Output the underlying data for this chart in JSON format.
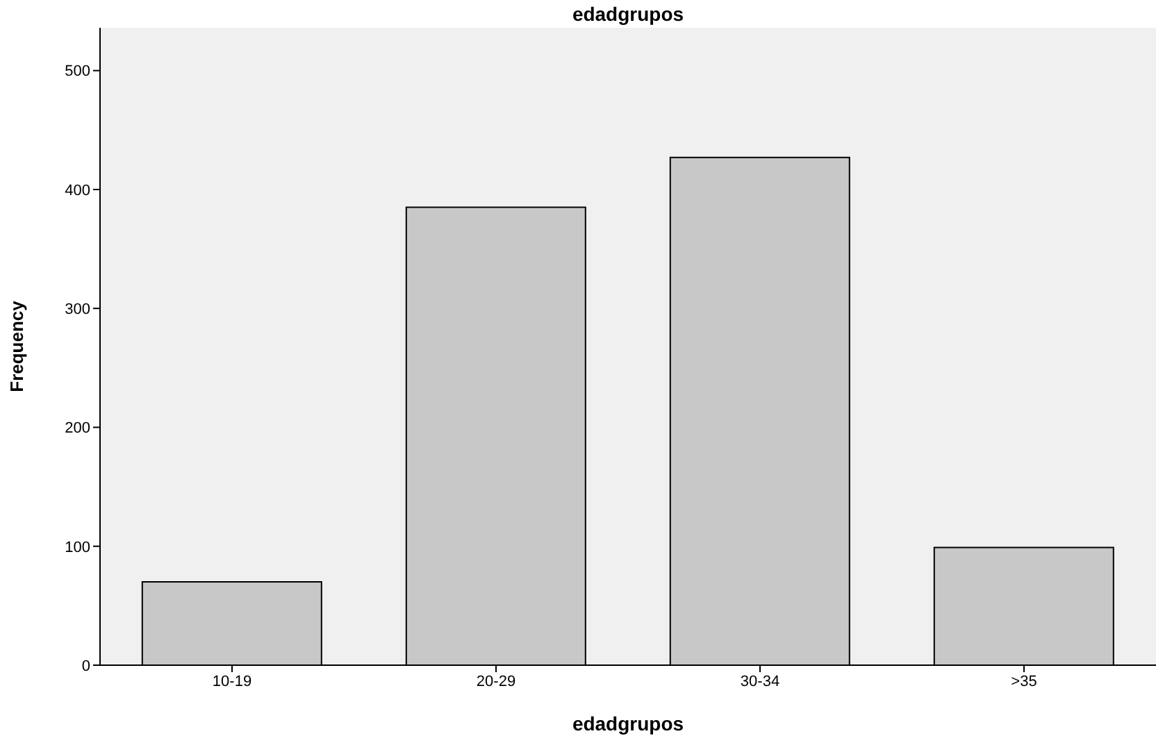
{
  "chart_data": {
    "type": "bar",
    "title": "edadgrupos",
    "xlabel": "edadgrupos",
    "ylabel": "Frequency",
    "categories": [
      "10-19",
      "20-29",
      "30-34",
      ">35"
    ],
    "values": [
      70,
      385,
      427,
      99
    ],
    "color": "#c8c8c8",
    "ylim": [
      0,
      536
    ],
    "yticks": [
      0,
      100,
      200,
      300,
      400,
      500
    ]
  }
}
